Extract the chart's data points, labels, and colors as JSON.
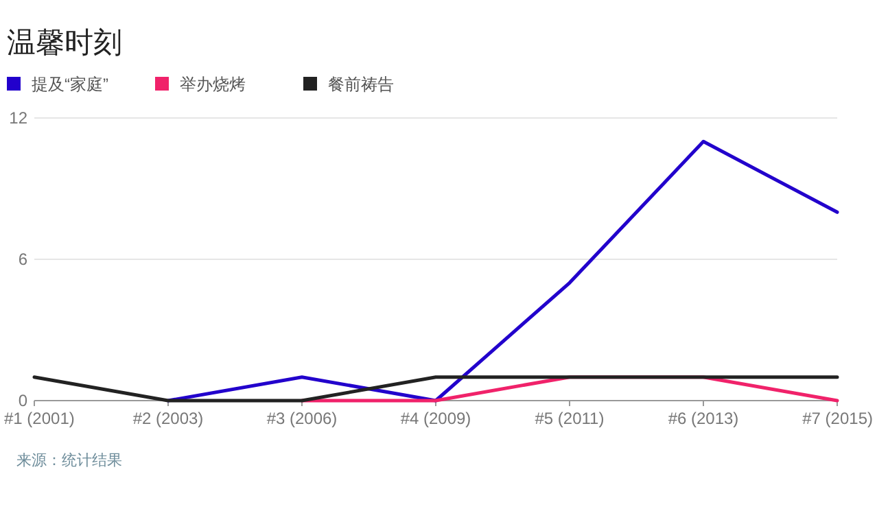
{
  "chart_data": {
    "type": "line",
    "title": "温馨时刻",
    "categories": [
      "#1 (2001)",
      "#2 (2003)",
      "#3 (2006)",
      "#4 (2009)",
      "#5 (2011)",
      "#6 (2013)",
      "#7 (2015)"
    ],
    "series": [
      {
        "name": "提及“家庭”",
        "color": "#2200cc",
        "values": [
          null,
          0,
          1,
          0,
          5,
          11,
          8
        ]
      },
      {
        "name": "举办烧烤",
        "color": "#f0226a",
        "values": [
          null,
          null,
          0,
          0,
          1,
          1,
          0
        ]
      },
      {
        "name": "餐前祷告",
        "color": "#222222",
        "values": [
          1,
          0,
          0,
          1,
          1,
          1,
          1
        ]
      }
    ],
    "ylim": [
      0,
      12
    ],
    "yticks": [
      0,
      6,
      12
    ],
    "grid": "y",
    "legend": "top",
    "marker": "none",
    "line_style": "solid",
    "annotations": [
      "来源：统计结果"
    ]
  }
}
